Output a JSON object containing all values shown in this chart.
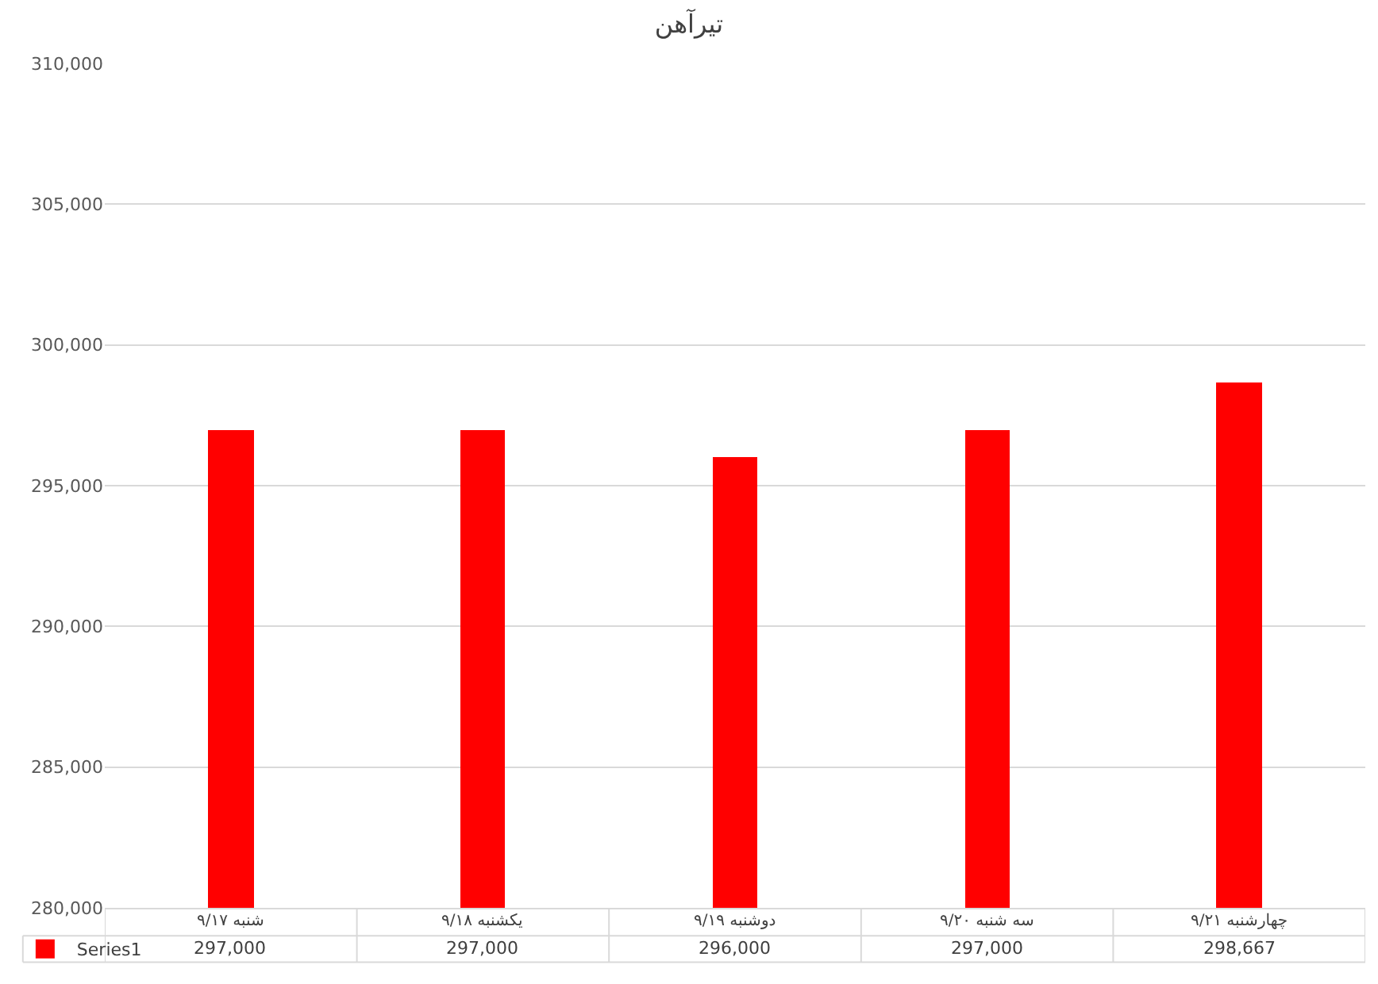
{
  "chart_data": {
    "type": "bar",
    "title": "تیرآهن",
    "categories": [
      "شنبه ۹/۱۷",
      "یکشنبه ۹/۱۸",
      "دوشنبه ۹/۱۹",
      "سه شنبه ۹/۲۰",
      "چهارشنبه ۹/۲۱"
    ],
    "series": [
      {
        "name": "Series1",
        "color": "#ff0000",
        "values": [
          297000,
          297000,
          296000,
          297000,
          298667
        ],
        "value_labels": [
          "297,000",
          "297,000",
          "296,000",
          "297,000",
          "298,667"
        ]
      }
    ],
    "ylim": [
      280000,
      310000
    ],
    "yticks": [
      {
        "value": 280000,
        "label": "280,000"
      },
      {
        "value": 285000,
        "label": "285,000"
      },
      {
        "value": 290000,
        "label": "290,000"
      },
      {
        "value": 295000,
        "label": "295,000"
      },
      {
        "value": 300000,
        "label": "300,000"
      },
      {
        "value": 305000,
        "label": "305,000"
      },
      {
        "value": 310000,
        "label": "310,000"
      }
    ],
    "grid": "y",
    "legend": "bottom left"
  }
}
